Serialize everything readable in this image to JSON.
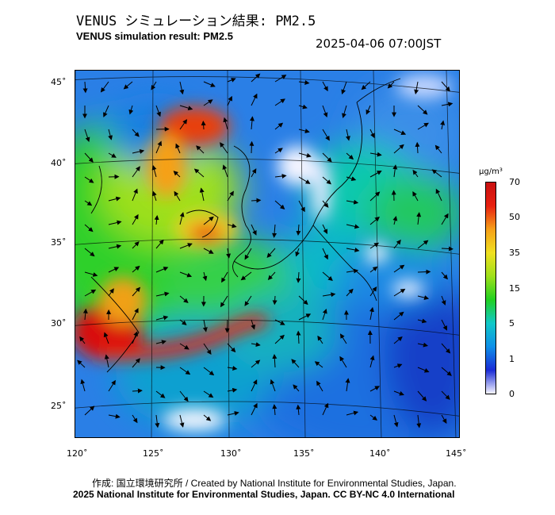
{
  "header": {
    "title_jp": "VENUS シミュレーション結果: PM2.5",
    "title_en": "VENUS simulation result: PM2.5",
    "timestamp": "2025-04-06 07:00JST"
  },
  "map": {
    "lat_labels": [
      "45˚",
      "40˚",
      "35˚",
      "30˚",
      "25˚"
    ],
    "lon_labels": [
      "120˚",
      "125˚",
      "130˚",
      "135˚",
      "140˚",
      "145˚"
    ]
  },
  "colorbar": {
    "unit": "μg/m³",
    "ticks": [
      "70",
      "50",
      "35",
      "15",
      "5",
      "1",
      "0"
    ],
    "colors": [
      "#f5f5ff",
      "#1a2bd6",
      "#0e8fe8",
      "#10c8c8",
      "#20d020",
      "#9ee01a",
      "#f0e020",
      "#f6a018",
      "#e82010",
      "#c81010"
    ]
  },
  "footer": {
    "credit": "作成: 国立環境研究所 / Created by National Institute for Environmental Studies, Japan.",
    "license": "2025 National Institute for Environmental Studies, Japan. CC BY-NC 4.0 International"
  }
}
